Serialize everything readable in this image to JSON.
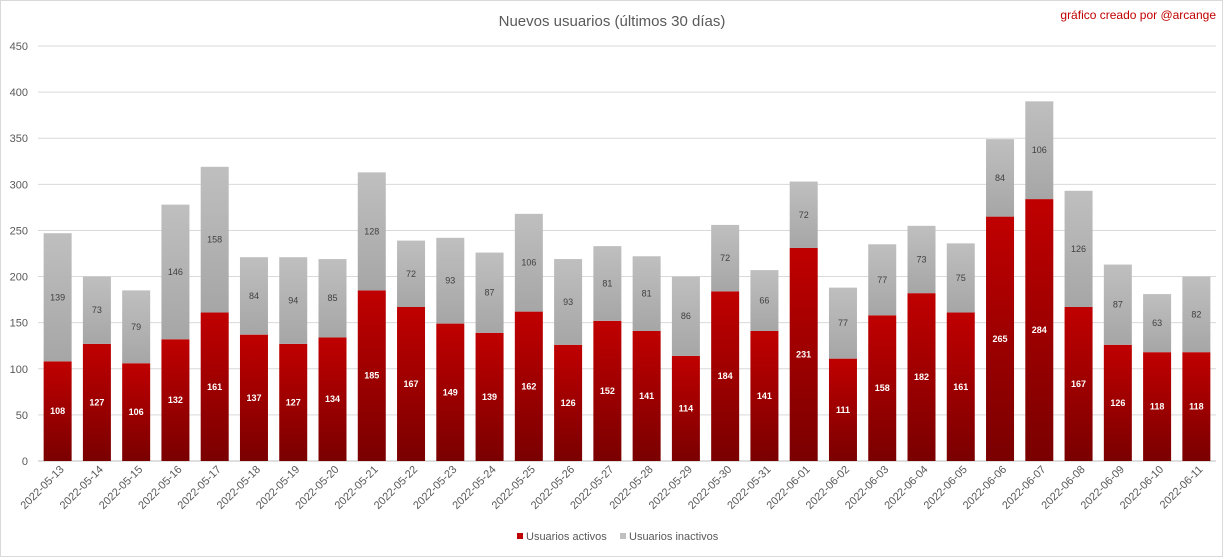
{
  "chart_data": {
    "type": "bar",
    "stacked": true,
    "title": "Nuevos usuarios (últimos 30 días)",
    "annotation": "gráfico creado por @arcange",
    "categories": [
      "2022-05-13",
      "2022-05-14",
      "2022-05-15",
      "2022-05-16",
      "2022-05-17",
      "2022-05-18",
      "2022-05-19",
      "2022-05-20",
      "2022-05-21",
      "2022-05-22",
      "2022-05-23",
      "2022-05-24",
      "2022-05-25",
      "2022-05-26",
      "2022-05-27",
      "2022-05-28",
      "2022-05-29",
      "2022-05-30",
      "2022-05-31",
      "2022-06-01",
      "2022-06-02",
      "2022-06-03",
      "2022-06-04",
      "2022-06-05",
      "2022-06-06",
      "2022-06-07",
      "2022-06-08",
      "2022-06-09",
      "2022-06-10",
      "2022-06-11"
    ],
    "series": [
      {
        "name": "Usuarios activos",
        "color": "#c00000",
        "values": [
          108,
          127,
          106,
          132,
          161,
          137,
          127,
          134,
          185,
          167,
          149,
          139,
          162,
          126,
          152,
          141,
          114,
          184,
          141,
          231,
          111,
          158,
          182,
          161,
          265,
          284,
          167,
          126,
          118,
          118
        ]
      },
      {
        "name": "Usuarios inactivos",
        "color": "#bfbfbf",
        "values": [
          139,
          73,
          79,
          146,
          158,
          84,
          94,
          85,
          128,
          72,
          93,
          87,
          106,
          93,
          81,
          81,
          86,
          72,
          66,
          72,
          77,
          77,
          73,
          75,
          84,
          106,
          126,
          87,
          63,
          82
        ]
      }
    ],
    "yticks": [
      0,
      50,
      100,
      150,
      200,
      250,
      300,
      350,
      400,
      450
    ],
    "ylim": [
      0,
      450
    ],
    "grid": true,
    "legend_position": "bottom"
  }
}
